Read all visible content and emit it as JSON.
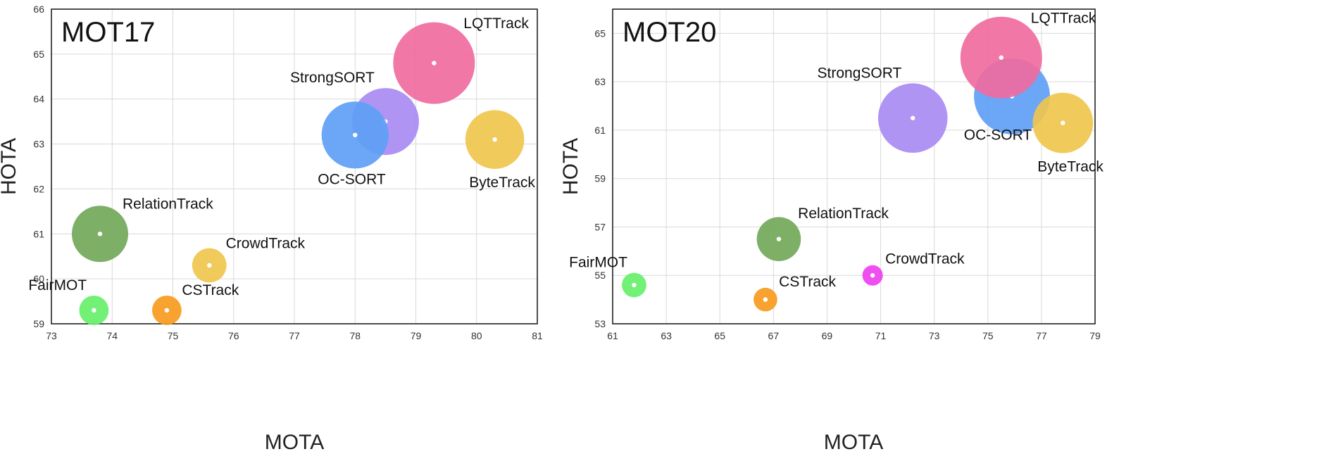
{
  "chart_data": [
    {
      "type": "scatter",
      "title": "MOT17",
      "xlabel": "MOTA",
      "ylabel": "HOTA",
      "xlim": [
        73,
        81
      ],
      "ylim": [
        59,
        66
      ],
      "x_ticks": [
        73,
        74,
        75,
        76,
        77,
        78,
        79,
        80,
        81
      ],
      "y_ticks": [
        59,
        60,
        61,
        62,
        63,
        64,
        65,
        66
      ],
      "grid": true,
      "points": [
        {
          "name": "LQTTrack",
          "mota": 79.3,
          "hota": 64.8,
          "size": 1.0,
          "color": "#f06ba0",
          "label_pos": "upper-right"
        },
        {
          "name": "StrongSORT",
          "mota": 78.5,
          "hota": 63.5,
          "size": 0.82,
          "color": "#a98bf2",
          "label_pos": "upper-left"
        },
        {
          "name": "OC-SORT",
          "mota": 78.0,
          "hota": 63.2,
          "size": 0.82,
          "color": "#5ea0f5",
          "label_pos": "below"
        },
        {
          "name": "ByteTrack",
          "mota": 80.3,
          "hota": 63.1,
          "size": 0.72,
          "color": "#f0c64e",
          "label_pos": "below-right"
        },
        {
          "name": "RelationTrack",
          "mota": 73.8,
          "hota": 61.0,
          "size": 0.69,
          "color": "#73a85a",
          "label_pos": "upper-right"
        },
        {
          "name": "CrowdTrack",
          "mota": 75.6,
          "hota": 60.3,
          "size": 0.42,
          "color": "#f0c64e",
          "label_pos": "upper-right"
        },
        {
          "name": "FairMOT",
          "mota": 73.7,
          "hota": 59.3,
          "size": 0.36,
          "color": "#66f06a",
          "label_pos": "upper-left"
        },
        {
          "name": "CSTrack",
          "mota": 74.9,
          "hota": 59.3,
          "size": 0.36,
          "color": "#f79a1e",
          "label_pos": "upper-right"
        }
      ]
    },
    {
      "type": "scatter",
      "title": "MOT20",
      "xlabel": "MOTA",
      "ylabel": "HOTA",
      "xlim": [
        61,
        79
      ],
      "ylim": [
        53,
        66
      ],
      "x_ticks": [
        61,
        63,
        65,
        67,
        69,
        71,
        73,
        75,
        77,
        79
      ],
      "y_ticks": [
        53,
        55,
        57,
        59,
        61,
        63,
        65
      ],
      "grid": true,
      "points": [
        {
          "name": "OC-SORT",
          "mota": 75.9,
          "hota": 62.4,
          "size": 0.93,
          "color": "#5ea0f5",
          "label_pos": "below-left"
        },
        {
          "name": "LQTTrack",
          "mota": 75.5,
          "hota": 64.0,
          "size": 1.0,
          "color": "#f06ba0",
          "label_pos": "upper-right"
        },
        {
          "name": "StrongSORT",
          "mota": 72.2,
          "hota": 61.5,
          "size": 0.85,
          "color": "#a98bf2",
          "label_pos": "upper-left"
        },
        {
          "name": "ByteTrack",
          "mota": 77.8,
          "hota": 61.3,
          "size": 0.74,
          "color": "#f0c64e",
          "label_pos": "below-right"
        },
        {
          "name": "RelationTrack",
          "mota": 67.2,
          "hota": 56.5,
          "size": 0.54,
          "color": "#73a85a",
          "label_pos": "upper-right"
        },
        {
          "name": "CrowdTrack",
          "mota": 70.7,
          "hota": 55.0,
          "size": 0.25,
          "color": "#ee3ff0",
          "label_pos": "upper-right"
        },
        {
          "name": "FairMOT",
          "mota": 61.8,
          "hota": 54.6,
          "size": 0.3,
          "color": "#66f06a",
          "label_pos": "upper-left"
        },
        {
          "name": "CSTrack",
          "mota": 66.7,
          "hota": 54.0,
          "size": 0.29,
          "color": "#f79a1e",
          "label_pos": "upper-right"
        }
      ]
    }
  ]
}
